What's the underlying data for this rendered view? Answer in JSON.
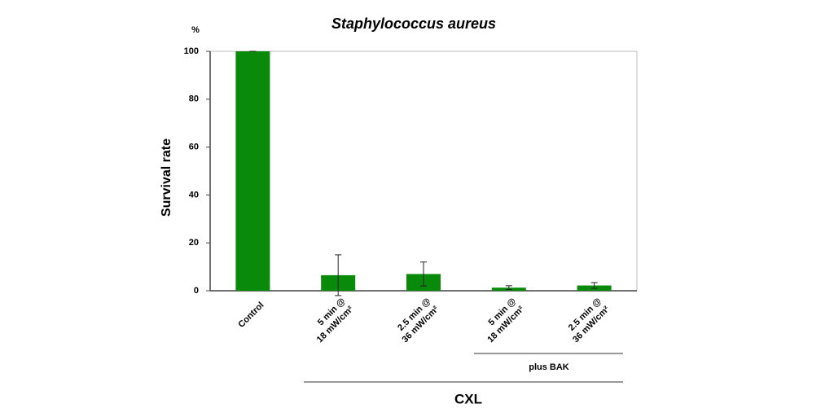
{
  "chart_data": {
    "type": "bar",
    "title": "Staphylococcus aureus",
    "y_unit": "%",
    "y_label": "Survival rate",
    "categories": [
      [
        "Control"
      ],
      [
        "5 min @",
        "18 mW/cm²"
      ],
      [
        "2.5 min @",
        "36 mW/cm²"
      ],
      [
        "5 min @",
        "18 mW/cm²"
      ],
      [
        "2.5 min @",
        "36 mW/cm²"
      ]
    ],
    "values": [
      100,
      6.5,
      7,
      1.3,
      2.2
    ],
    "errors": [
      0,
      8.5,
      5,
      0.8,
      1.2
    ],
    "color": "#0a8a0a",
    "ylim": [
      0,
      100
    ],
    "yticks": [
      0,
      20,
      40,
      60,
      80,
      100
    ],
    "annotations": [
      "plus BAK",
      "CXL"
    ]
  }
}
